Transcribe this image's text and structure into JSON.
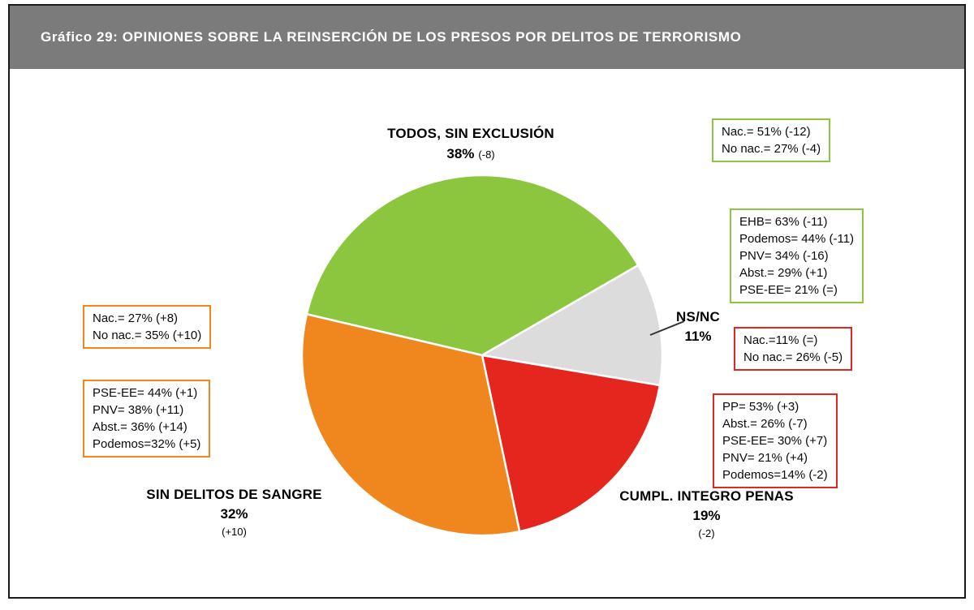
{
  "header": {
    "title": "Gráfico 29: OPINIONES SOBRE LA REINSERCIÓN DE LOS PRESOS POR DELITOS DE TERRORISMO"
  },
  "chart_data": {
    "type": "pie",
    "title": "Gráfico 29: OPINIONES SOBRE LA REINSERCIÓN DE LOS PRESOS POR DELITOS DE TERRORISMO",
    "start_angle_deg": -76.8,
    "slices": [
      {
        "id": "todos",
        "label": "TODOS, SIN EXCLUSIÓN",
        "value": 38,
        "pct": "38%",
        "change": "(-8)",
        "color": "#8cc63e"
      },
      {
        "id": "nsnc",
        "label": "NS/NC",
        "value": 11,
        "pct": "11%",
        "change": "",
        "color": "#dcdcdc"
      },
      {
        "id": "cumpl",
        "label": "CUMPL. INTEGRO PENAS",
        "value": 19,
        "pct": "19%",
        "change": "(-2)",
        "color": "#e5261f"
      },
      {
        "id": "sangre",
        "label": "SIN DELITOS DE SANGRE",
        "value": 32,
        "pct": "32%",
        "change": "(+10)",
        "color": "#f0861e"
      }
    ],
    "boxes": [
      {
        "group": "todos-nationalism",
        "color": "#8cc63e",
        "lines": [
          "Nac.= 51% (-12)",
          "No nac.= 27% (-4)"
        ]
      },
      {
        "group": "todos-parties",
        "color": "#8cc63e",
        "lines": [
          "EHB= 63% (-11)",
          "Podemos= 44% (-11)",
          "PNV= 34% (-16)",
          "Abst.= 29% (+1)",
          "PSE-EE= 21% (=)"
        ]
      },
      {
        "group": "cumpl-nationalism",
        "color": "#e5261f",
        "lines": [
          "Nac.=11% (=)",
          "No nac.= 26% (-5)"
        ]
      },
      {
        "group": "cumpl-parties",
        "color": "#e5261f",
        "lines": [
          "PP= 53% (+3)",
          "Abst.= 26% (-7)",
          "PSE-EE= 30% (+7)",
          "PNV= 21% (+4)",
          "Podemos=14% (-2)"
        ]
      },
      {
        "group": "sangre-nationalism",
        "color": "#f0861e",
        "lines": [
          "Nac.= 27% (+8)",
          "No nac.= 35% (+10)"
        ]
      },
      {
        "group": "sangre-parties",
        "color": "#f0861e",
        "lines": [
          "PSE-EE= 44% (+1)",
          "PNV= 38% (+11)",
          "Abst.= 36% (+14)",
          "Podemos=32% (+5)"
        ]
      }
    ]
  }
}
